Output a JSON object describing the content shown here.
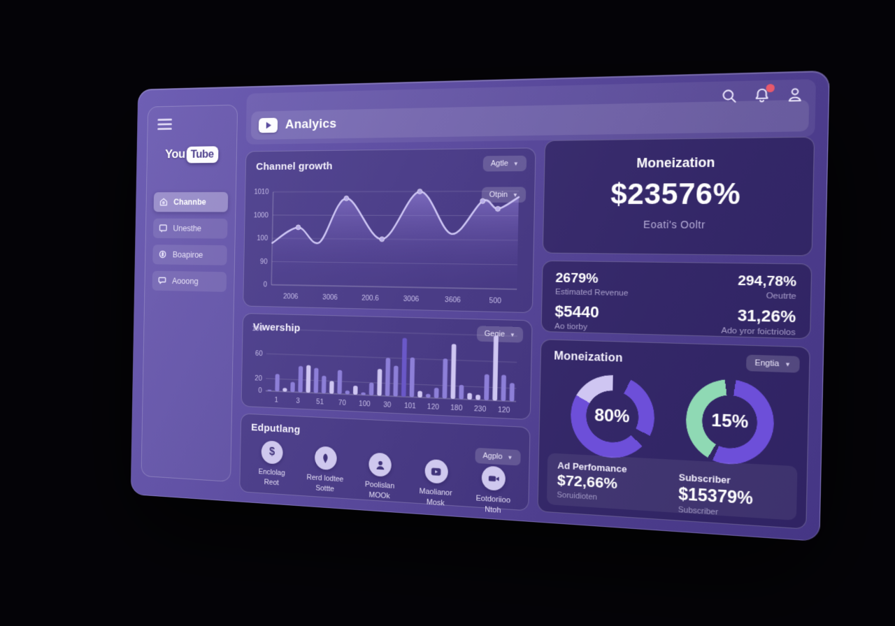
{
  "header": {
    "title": "Analyics",
    "notification_color": "#e8596b"
  },
  "sidebar": {
    "logo": {
      "you": "You",
      "tube": "Tube"
    },
    "items": [
      {
        "label": "Channbe",
        "icon": "home-icon",
        "active": true
      },
      {
        "label": "Unesthe",
        "icon": "screen-icon",
        "active": false
      },
      {
        "label": "Boapiroe",
        "icon": "coin-icon",
        "active": false
      },
      {
        "label": "Aooong",
        "icon": "chat-icon",
        "active": false
      }
    ]
  },
  "channel_growth": {
    "title": "Channel growth",
    "dropdown_period": "Agtle",
    "dropdown_metric": "Otpin"
  },
  "viewership": {
    "title": "Viwership",
    "dropdown": "Gegie"
  },
  "expanding": {
    "title": "Edputlang",
    "dropdown": "Agplo",
    "features": [
      {
        "icon": "dollar-icon",
        "line1": "Enclolag",
        "line2": "Reot"
      },
      {
        "icon": "leaf-icon",
        "line1": "Rerd lodtee",
        "line2": "Sottte"
      },
      {
        "icon": "person-icon",
        "line1": "Poolislan",
        "line2": "MOOk"
      },
      {
        "icon": "video-icon",
        "line1": "Maolianor",
        "line2": "Mosk"
      },
      {
        "icon": "camera-icon",
        "line1": "Eotdoriioo",
        "line2": "Ntoh"
      }
    ]
  },
  "monetization_hero": {
    "title": "Moneization",
    "value": "$23576%",
    "subtitle": "Eoati's Ooltr"
  },
  "revenue_stats": {
    "items": [
      {
        "value": "2679%",
        "label": "Estimated Revenue"
      },
      {
        "value": "294,78%",
        "label": "Oeutrte"
      },
      {
        "value": "$5440",
        "label": "Ao tiorby"
      },
      {
        "value": "31,26%",
        "label": "Ado yror foictriolos"
      }
    ]
  },
  "donut_card": {
    "title": "Moneization",
    "dropdown": "Engtia",
    "stats": [
      {
        "title": "Ad Perfomance",
        "value": "$72,66%",
        "sub": "Soruidioten"
      },
      {
        "title": "Subscriber",
        "value": "$15379%",
        "sub": "Subscriber"
      }
    ]
  },
  "chart_data": [
    {
      "id": "channel-growth",
      "type": "line",
      "title": "Channel growth",
      "yticks": [
        "1010",
        "1000",
        "100",
        "90",
        "0"
      ],
      "xticks": [
        "2006",
        "3006",
        "200.6",
        "3006",
        "3606",
        "500"
      ],
      "ylim": [
        0,
        100
      ],
      "points": [
        [
          0,
          45
        ],
        [
          11,
          62
        ],
        [
          20,
          46
        ],
        [
          31,
          93
        ],
        [
          46,
          50
        ],
        [
          61,
          100
        ],
        [
          74,
          56
        ],
        [
          86,
          90
        ],
        [
          92,
          82
        ],
        [
          100,
          94
        ]
      ],
      "markers": [
        1,
        3,
        4,
        5,
        7,
        8
      ],
      "line_color": "#cdc5f4",
      "marker_color": "#b9aeea",
      "area_top": "rgba(160,140,230,0.55)",
      "area_bottom": "rgba(80,60,150,0.02)",
      "grid": true,
      "legend": "none"
    },
    {
      "id": "viewership",
      "type": "bar",
      "title": "Viwership",
      "yticks": [
        100,
        60,
        20,
        0
      ],
      "xticks": [
        "1",
        "3",
        "51",
        "70",
        "100",
        "30",
        "101",
        "120",
        "180",
        "230",
        "120"
      ],
      "ylim": [
        0,
        100
      ],
      "values": [
        2,
        28,
        6,
        16,
        42,
        44,
        40,
        28,
        20,
        38,
        6,
        14,
        4,
        20,
        42,
        60,
        48,
        92,
        62,
        10,
        6,
        16,
        62,
        85,
        22,
        10,
        8,
        40,
        100,
        40,
        28
      ],
      "tones": [
        "m",
        "m",
        "l",
        "m",
        "m",
        "l",
        "m",
        "m",
        "l",
        "m",
        "m",
        "l",
        "m",
        "m",
        "l",
        "m",
        "m",
        "d",
        "m",
        "l",
        "m",
        "m",
        "m",
        "l",
        "m",
        "l",
        "l",
        "m",
        "l",
        "m",
        "m"
      ],
      "colors": {
        "l": "#cfc6f2",
        "m": "#8d7fd8",
        "d": "#6a58c8"
      },
      "grid": true,
      "legend": "none"
    },
    {
      "id": "ad-performance-donut",
      "type": "pie",
      "label": "80%",
      "segments": [
        [
          "transparent",
          0,
          7
        ],
        [
          "#6d4fd9",
          7,
          32
        ],
        [
          "transparent",
          32,
          37
        ],
        [
          "#6d4fd9",
          37,
          83
        ],
        [
          "#cfc6f2",
          83,
          100
        ]
      ]
    },
    {
      "id": "subscriber-donut",
      "type": "pie",
      "label": "15%",
      "segments": [
        [
          "transparent",
          0,
          2
        ],
        [
          "#6d4fd9",
          2,
          56
        ],
        [
          "transparent",
          56,
          58
        ],
        [
          "#8fd9b4",
          58,
          98
        ],
        [
          "transparent",
          98,
          100
        ]
      ]
    }
  ]
}
